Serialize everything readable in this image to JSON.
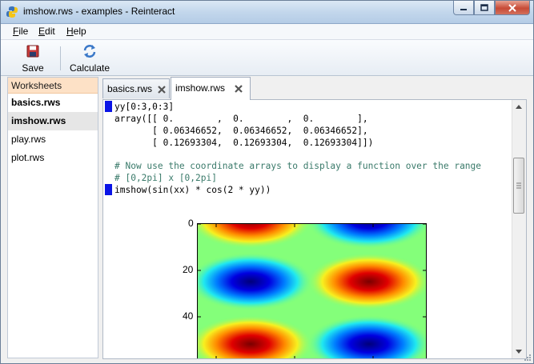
{
  "window": {
    "title": "imshow.rws - examples - Reinteract",
    "controls": [
      "minimize",
      "maximize",
      "close"
    ]
  },
  "menu": {
    "items": [
      {
        "label": "File",
        "mnemonic": "F",
        "rest": "ile"
      },
      {
        "label": "Edit",
        "mnemonic": "E",
        "rest": "dit"
      },
      {
        "label": "Help",
        "mnemonic": "H",
        "rest": "elp"
      }
    ]
  },
  "toolbar": {
    "save_label": "Save",
    "calculate_label": "Calculate"
  },
  "sidebar": {
    "header": "Worksheets",
    "items": [
      {
        "label": "basics.rws",
        "bold": true,
        "selected": false
      },
      {
        "label": "imshow.rws",
        "bold": true,
        "selected": true
      },
      {
        "label": "play.rws",
        "bold": false,
        "selected": false
      },
      {
        "label": "plot.rws",
        "bold": false,
        "selected": false
      }
    ]
  },
  "tabs": [
    {
      "label": "basics.rws",
      "active": false
    },
    {
      "label": "imshow.rws",
      "active": true
    }
  ],
  "editor": {
    "input1": "yy[0:3,0:3]",
    "output1": [
      "array([[ 0.        ,  0.        ,  0.        ],",
      "       [ 0.06346652,  0.06346652,  0.06346652],",
      "       [ 0.12693304,  0.12693304,  0.12693304]])"
    ],
    "comment1": "# Now use the coordinate arrays to display a function over the range",
    "comment2": "# [0,2pi] x [0,2pi]",
    "input2": "imshow(sin(xx) * cos(2 * yy))"
  },
  "plot": {
    "y_ticks": [
      "0",
      "20",
      "40"
    ],
    "colormap": "jet",
    "colors": {
      "red": "#c80000",
      "blue": "#0000c8"
    }
  }
}
